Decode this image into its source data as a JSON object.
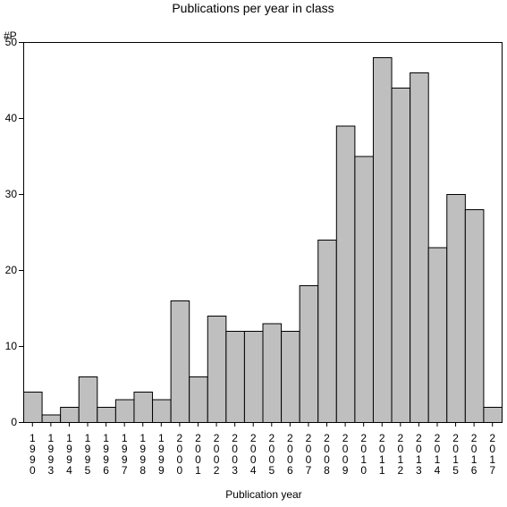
{
  "chart_data": {
    "type": "bar",
    "title": "Publications per year in class",
    "xlabel": "Publication year",
    "ylabel": "#P",
    "categories": [
      "1990",
      "1993",
      "1994",
      "1995",
      "1996",
      "1997",
      "1998",
      "1999",
      "2000",
      "2001",
      "2002",
      "2003",
      "2004",
      "2005",
      "2006",
      "2007",
      "2008",
      "2009",
      "2010",
      "2011",
      "2012",
      "2013",
      "2014",
      "2015",
      "2016",
      "2017"
    ],
    "values": [
      4,
      1,
      2,
      6,
      2,
      3,
      4,
      3,
      16,
      6,
      14,
      12,
      12,
      13,
      12,
      18,
      24,
      39,
      35,
      48,
      44,
      46,
      23,
      30,
      28,
      2
    ],
    "ylim": [
      0,
      50
    ],
    "yticks": [
      0,
      10,
      20,
      30,
      40,
      50
    ],
    "grid": false,
    "legend": "none",
    "bar_color": "#bfbfbf",
    "bar_edge_color": "#000000"
  }
}
